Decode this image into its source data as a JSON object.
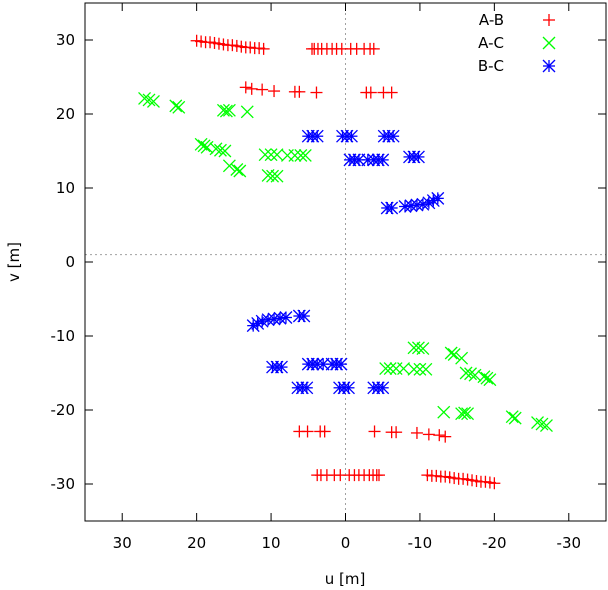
{
  "chart_data": {
    "type": "scatter",
    "title": "",
    "xlabel": "u [m]",
    "ylabel": "v [m]",
    "xlim": [
      35,
      -35
    ],
    "ylim": [
      -35,
      35
    ],
    "x_axis_reversed": true,
    "xticks": [
      30,
      20,
      10,
      0,
      -10,
      -20,
      -30
    ],
    "yticks": [
      30,
      20,
      10,
      0,
      -10,
      -20,
      -30
    ],
    "zero_lines": {
      "x": 0,
      "y": 1
    },
    "grid": false,
    "legend": "top-right",
    "series": [
      {
        "name": "A-B",
        "marker": "plus",
        "color": "#ff0000",
        "points": [
          [
            20,
            29.9
          ],
          [
            19.4,
            29.8
          ],
          [
            18.8,
            29.7
          ],
          [
            18.2,
            29.7
          ],
          [
            17.6,
            29.6
          ],
          [
            17,
            29.5
          ],
          [
            16.4,
            29.4
          ],
          [
            15.8,
            29.3
          ],
          [
            15.2,
            29.3
          ],
          [
            14.6,
            29.2
          ],
          [
            14,
            29.1
          ],
          [
            13.4,
            29.0
          ],
          [
            12.8,
            29.0
          ],
          [
            12.2,
            28.9
          ],
          [
            11.6,
            28.9
          ],
          [
            11,
            28.8
          ],
          [
            4.5,
            28.8
          ],
          [
            4.2,
            28.8
          ],
          [
            3.7,
            28.8
          ],
          [
            3.2,
            28.8
          ],
          [
            2.5,
            28.8
          ],
          [
            1.8,
            28.8
          ],
          [
            1.2,
            28.8
          ],
          [
            0.5,
            28.8
          ],
          [
            -0.7,
            28.8
          ],
          [
            -1.5,
            28.8
          ],
          [
            -2.5,
            28.8
          ],
          [
            -3.3,
            28.8
          ],
          [
            -3.8,
            28.8
          ],
          [
            13.4,
            23.6
          ],
          [
            12.6,
            23.4
          ],
          [
            11.2,
            23.3
          ],
          [
            9.6,
            23.1
          ],
          [
            6.8,
            23.0
          ],
          [
            6.2,
            23.0
          ],
          [
            3.9,
            22.9
          ],
          [
            -2.8,
            22.9
          ],
          [
            -3.4,
            22.9
          ],
          [
            -5.1,
            22.9
          ],
          [
            -6.2,
            22.9
          ],
          [
            -20,
            -29.9
          ],
          [
            -19.4,
            -29.8
          ],
          [
            -18.8,
            -29.7
          ],
          [
            -18.2,
            -29.7
          ],
          [
            -17.6,
            -29.6
          ],
          [
            -17,
            -29.5
          ],
          [
            -16.4,
            -29.4
          ],
          [
            -15.8,
            -29.3
          ],
          [
            -15.2,
            -29.3
          ],
          [
            -14.6,
            -29.2
          ],
          [
            -14,
            -29.1
          ],
          [
            -13.4,
            -29.0
          ],
          [
            -12.8,
            -29.0
          ],
          [
            -12.2,
            -28.9
          ],
          [
            -11.6,
            -28.9
          ],
          [
            -11,
            -28.8
          ],
          [
            -4.5,
            -28.8
          ],
          [
            -4.2,
            -28.8
          ],
          [
            -3.7,
            -28.8
          ],
          [
            -3.2,
            -28.8
          ],
          [
            -2.5,
            -28.8
          ],
          [
            -1.8,
            -28.8
          ],
          [
            -1.2,
            -28.8
          ],
          [
            -0.5,
            -28.8
          ],
          [
            0.7,
            -28.8
          ],
          [
            1.5,
            -28.8
          ],
          [
            2.5,
            -28.8
          ],
          [
            3.3,
            -28.8
          ],
          [
            3.8,
            -28.8
          ],
          [
            -13.4,
            -23.6
          ],
          [
            -12.6,
            -23.4
          ],
          [
            -11.2,
            -23.3
          ],
          [
            -9.6,
            -23.1
          ],
          [
            -6.8,
            -23.0
          ],
          [
            -6.2,
            -23.0
          ],
          [
            -3.9,
            -22.9
          ],
          [
            2.8,
            -22.9
          ],
          [
            3.4,
            -22.9
          ],
          [
            5.1,
            -22.9
          ],
          [
            6.2,
            -22.9
          ]
        ]
      },
      {
        "name": "A-C",
        "marker": "cross",
        "color": "#00ff00",
        "points": [
          [
            27,
            22.1
          ],
          [
            26.4,
            21.9
          ],
          [
            25.8,
            21.7
          ],
          [
            22.8,
            21.1
          ],
          [
            22.4,
            20.9
          ],
          [
            16.4,
            20.5
          ],
          [
            16.0,
            20.4
          ],
          [
            15.6,
            20.5
          ],
          [
            13.2,
            20.3
          ],
          [
            19.4,
            15.9
          ],
          [
            19.0,
            15.7
          ],
          [
            18.6,
            15.5
          ],
          [
            17.4,
            15.3
          ],
          [
            16.8,
            15.1
          ],
          [
            16.2,
            15.0
          ],
          [
            15.6,
            13.0
          ],
          [
            14.6,
            12.5
          ],
          [
            14.2,
            12.3
          ],
          [
            10.8,
            14.5
          ],
          [
            10.0,
            14.5
          ],
          [
            9.2,
            14.5
          ],
          [
            7.8,
            14.4
          ],
          [
            6.8,
            14.4
          ],
          [
            6.0,
            14.4
          ],
          [
            5.4,
            14.4
          ],
          [
            10.4,
            11.7
          ],
          [
            9.8,
            11.6
          ],
          [
            9.2,
            11.6
          ],
          [
            -27,
            -22.1
          ],
          [
            -26.4,
            -21.9
          ],
          [
            -25.8,
            -21.7
          ],
          [
            -22.8,
            -21.1
          ],
          [
            -22.4,
            -20.9
          ],
          [
            -16.4,
            -20.5
          ],
          [
            -16.0,
            -20.4
          ],
          [
            -15.6,
            -20.5
          ],
          [
            -13.2,
            -20.3
          ],
          [
            -19.4,
            -15.9
          ],
          [
            -19.0,
            -15.7
          ],
          [
            -18.6,
            -15.5
          ],
          [
            -17.4,
            -15.3
          ],
          [
            -16.8,
            -15.1
          ],
          [
            -16.2,
            -15.0
          ],
          [
            -15.6,
            -13.0
          ],
          [
            -14.6,
            -12.5
          ],
          [
            -14.2,
            -12.3
          ],
          [
            -10.8,
            -14.5
          ],
          [
            -10.0,
            -14.5
          ],
          [
            -9.2,
            -14.5
          ],
          [
            -7.8,
            -14.4
          ],
          [
            -6.8,
            -14.4
          ],
          [
            -6.0,
            -14.4
          ],
          [
            -5.4,
            -14.4
          ],
          [
            -10.4,
            -11.7
          ],
          [
            -9.8,
            -11.6
          ],
          [
            -9.2,
            -11.6
          ]
        ]
      },
      {
        "name": "B-C",
        "marker": "star",
        "color": "#0000ff",
        "points": [
          [
            5.0,
            17.0
          ],
          [
            4.4,
            17.0
          ],
          [
            3.8,
            17.0
          ],
          [
            0.4,
            17.0
          ],
          [
            -0.2,
            17.0
          ],
          [
            -0.8,
            17.0
          ],
          [
            -5.2,
            17.0
          ],
          [
            -5.8,
            17.0
          ],
          [
            -6.4,
            17.0
          ],
          [
            -0.6,
            13.8
          ],
          [
            -1.2,
            13.8
          ],
          [
            -1.8,
            13.8
          ],
          [
            -3.0,
            13.8
          ],
          [
            -3.8,
            13.8
          ],
          [
            -4.4,
            13.8
          ],
          [
            -5.0,
            13.8
          ],
          [
            -8.6,
            14.2
          ],
          [
            -9.2,
            14.2
          ],
          [
            -9.8,
            14.2
          ],
          [
            -5.6,
            7.3
          ],
          [
            -6.2,
            7.3
          ],
          [
            -8.0,
            7.5
          ],
          [
            -8.8,
            7.6
          ],
          [
            -9.6,
            7.7
          ],
          [
            -10.4,
            7.8
          ],
          [
            -11.2,
            8.0
          ],
          [
            -11.8,
            8.3
          ],
          [
            -12.4,
            8.6
          ],
          [
            -5.0,
            -17.0
          ],
          [
            -4.4,
            -17.0
          ],
          [
            -3.8,
            -17.0
          ],
          [
            -0.4,
            -17.0
          ],
          [
            0.2,
            -17.0
          ],
          [
            0.8,
            -17.0
          ],
          [
            5.2,
            -17.0
          ],
          [
            5.8,
            -17.0
          ],
          [
            6.4,
            -17.0
          ],
          [
            0.6,
            -13.8
          ],
          [
            1.2,
            -13.8
          ],
          [
            1.8,
            -13.8
          ],
          [
            3.0,
            -13.8
          ],
          [
            3.8,
            -13.8
          ],
          [
            4.4,
            -13.8
          ],
          [
            5.0,
            -13.8
          ],
          [
            8.6,
            -14.2
          ],
          [
            9.2,
            -14.2
          ],
          [
            9.8,
            -14.2
          ],
          [
            5.6,
            -7.3
          ],
          [
            6.2,
            -7.3
          ],
          [
            8.0,
            -7.5
          ],
          [
            8.8,
            -7.6
          ],
          [
            9.6,
            -7.7
          ],
          [
            10.4,
            -7.8
          ],
          [
            11.2,
            -8.0
          ],
          [
            11.8,
            -8.3
          ],
          [
            12.4,
            -8.6
          ]
        ]
      }
    ]
  }
}
